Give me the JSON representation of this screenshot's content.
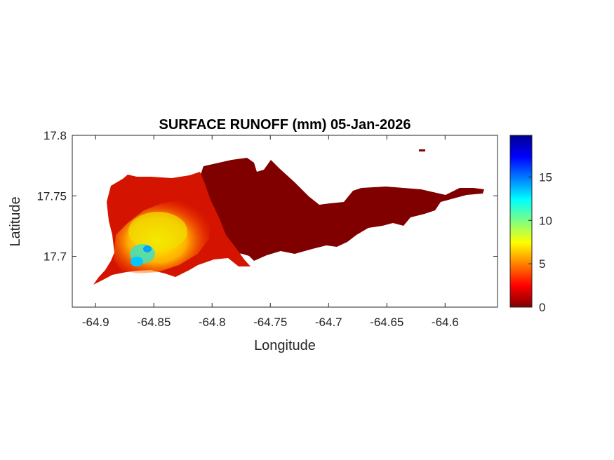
{
  "chart_data": {
    "type": "heatmap",
    "title": "SURFACE RUNOFF (mm) 05-Jan-2026",
    "xlabel": "Longitude",
    "ylabel": "Latitude",
    "xlim": [
      -64.92,
      -64.555
    ],
    "ylim": [
      17.658,
      17.8
    ],
    "xticks": [
      -64.9,
      -64.85,
      -64.8,
      -64.75,
      -64.7,
      -64.65,
      -64.6
    ],
    "xtick_labels": [
      "-64.9",
      "-64.85",
      "-64.8",
      "-64.75",
      "-64.7",
      "-64.65",
      "-64.6"
    ],
    "yticks": [
      17.7,
      17.75,
      17.8
    ],
    "ytick_labels": [
      "17.7",
      "17.75",
      "17.8"
    ],
    "colormap": "jet",
    "clim": [
      0,
      19.8
    ],
    "colorbar_ticks": [
      0,
      5,
      10,
      15
    ],
    "colorbar_labels": [
      "0",
      "5",
      "10",
      "15"
    ],
    "grid": false,
    "regions": [
      {
        "description": "eastern island",
        "value_range": [
          0,
          0.5
        ]
      },
      {
        "description": "central-west",
        "value_range": [
          0.5,
          3
        ]
      },
      {
        "description": "south-west",
        "value_range": [
          4,
          16
        ]
      }
    ]
  }
}
